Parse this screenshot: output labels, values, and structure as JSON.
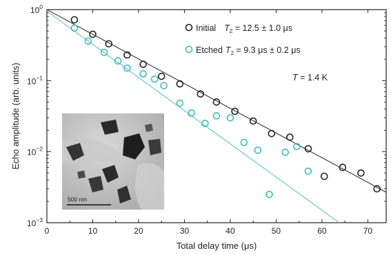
{
  "chart_data": {
    "type": "scatter",
    "xlabel": "Total delay time (μs)",
    "ylabel": "Echo amplitude (arb. units)",
    "xlim": [
      0,
      74
    ],
    "ylim": [
      0.001,
      1
    ],
    "yscale": "log",
    "x_ticks": [
      0,
      10,
      20,
      30,
      40,
      50,
      60,
      70
    ],
    "x_tick_labels": [
      "0",
      "10",
      "20",
      "30",
      "40",
      "50",
      "60",
      "70"
    ],
    "y_ticks": [
      0.001,
      0.01,
      0.1,
      1
    ],
    "y_tick_labels": [
      {
        "base": "10",
        "exp": "−3"
      },
      {
        "base": "10",
        "exp": "−2"
      },
      {
        "base": "10",
        "exp": "−1"
      },
      {
        "base": "10",
        "exp": "0"
      }
    ],
    "grid": false,
    "legend_position": "top-right",
    "series": [
      {
        "name": "Initial",
        "label_symbol": "T",
        "label_sub": "2",
        "label_value": " = 12.5 ± 1.0 μs",
        "color": "#222222",
        "fit_color": "#444444",
        "fit": {
          "y0": 1.0,
          "T2": 12.5
        },
        "x": [
          6,
          10,
          13.5,
          17.5,
          21,
          25,
          29,
          33.5,
          37,
          41,
          45,
          49,
          53,
          57,
          60.5,
          64.5,
          68.5,
          72
        ],
        "y": [
          0.72,
          0.45,
          0.33,
          0.23,
          0.17,
          0.115,
          0.09,
          0.065,
          0.05,
          0.037,
          0.027,
          0.018,
          0.016,
          0.011,
          0.0045,
          0.006,
          0.005,
          0.003
        ]
      },
      {
        "name": "Etched",
        "label_symbol": "T",
        "label_sub": "2",
        "label_value": " = 9.3 μs ± 0.2 μs",
        "color": "#3dbcbc",
        "fit_color": "#6cc6cf",
        "fit": {
          "y0": 0.95,
          "T2": 9.3
        },
        "x": [
          6,
          9,
          12.5,
          15.5,
          17.5,
          21,
          23.5,
          25.5,
          29,
          31.5,
          34.5,
          37,
          40,
          43,
          46,
          48.5,
          52,
          54.5,
          57
        ],
        "y": [
          0.55,
          0.36,
          0.25,
          0.19,
          0.15,
          0.125,
          0.105,
          0.085,
          0.048,
          0.035,
          0.025,
          0.032,
          0.03,
          0.0135,
          0.0105,
          0.0025,
          0.0098,
          0.0118,
          0.0053
        ]
      }
    ],
    "annotations": [
      {
        "symbol": "T",
        "text": " = 1.4 K"
      }
    ],
    "inset": {
      "scale_bar_label": "500  nm"
    }
  }
}
